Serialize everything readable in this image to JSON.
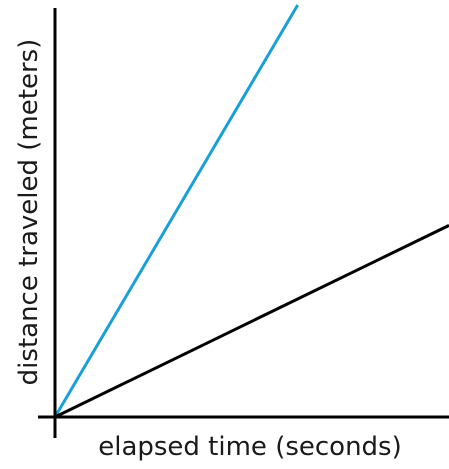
{
  "chart_data": {
    "type": "line",
    "title": "",
    "xlabel": "elapsed time (seconds)",
    "ylabel": "distance traveled (meters)",
    "xlim": [
      0,
      1
    ],
    "ylim": [
      0,
      1
    ],
    "grid": false,
    "ticks": false,
    "series": [
      {
        "x": [
          0,
          0.616
        ],
        "y": [
          0,
          1.0
        ],
        "color": "#1a9fd6"
      },
      {
        "x": [
          0,
          1.0
        ],
        "y": [
          0,
          0.465
        ],
        "color": "#000000"
      }
    ]
  }
}
